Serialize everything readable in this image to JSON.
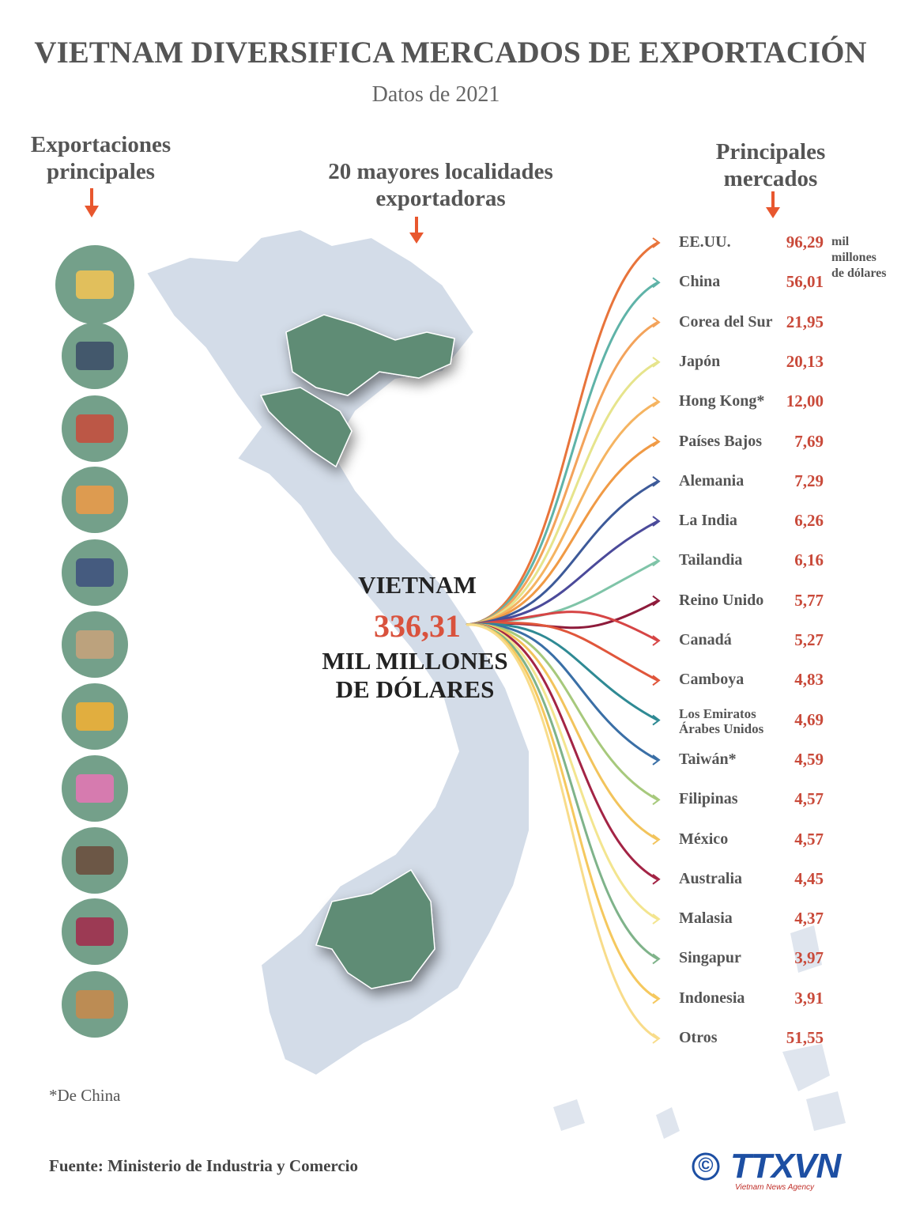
{
  "header": {
    "title": "VIETNAM DIVERSIFICA MERCADOS DE EXPORTACIÓN",
    "subtitle": "Datos de 2021"
  },
  "exports": {
    "heading": "Exportaciones principales"
  },
  "localities": {
    "heading": "20 mayores localidades exportadoras"
  },
  "center": {
    "country": "VIETNAM",
    "total": "336,31",
    "unit": "MIL MILLONES DE DÓLARES"
  },
  "markets": {
    "heading": "Principales mercados",
    "unit": "mil millones de dólares",
    "items": [
      {
        "name": "EE.UU.",
        "value": "96,29",
        "color": "#e8743b"
      },
      {
        "name": "China",
        "value": "56,01",
        "color": "#5fb3a8"
      },
      {
        "name": "Corea del Sur",
        "value": "21,95",
        "color": "#f3a35b"
      },
      {
        "name": "Japón",
        "value": "20,13",
        "color": "#e6e48c"
      },
      {
        "name": "Hong Kong*",
        "value": "12,00",
        "color": "#f5b461"
      },
      {
        "name": "Países Bajos",
        "value": "7,69",
        "color": "#f09a45"
      },
      {
        "name": "Alemania",
        "value": "7,29",
        "color": "#3d5a99"
      },
      {
        "name": "La India",
        "value": "6,26",
        "color": "#4b4a9a"
      },
      {
        "name": "Tailandia",
        "value": "6,16",
        "color": "#7fc4a8"
      },
      {
        "name": "Reino Unido",
        "value": "5,77",
        "color": "#8e1b3b"
      },
      {
        "name": "Canadá",
        "value": "5,27",
        "color": "#d64545"
      },
      {
        "name": "Camboya",
        "value": "4,83",
        "color": "#e0563b"
      },
      {
        "name": "Los Emiratos Árabes Unidos",
        "value": "4,69",
        "color": "#2f8a94"
      },
      {
        "name": "Taiwán*",
        "value": "4,59",
        "color": "#3a6fa6"
      },
      {
        "name": "Filipinas",
        "value": "4,57",
        "color": "#a7c97c"
      },
      {
        "name": "México",
        "value": "4,57",
        "color": "#f2c45c"
      },
      {
        "name": "Australia",
        "value": "4,45",
        "color": "#a32445"
      },
      {
        "name": "Malasia",
        "value": "4,37",
        "color": "#f3e58f"
      },
      {
        "name": "Singapur",
        "value": "3,97",
        "color": "#7fb38a"
      },
      {
        "name": "Indonesia",
        "value": "3,91",
        "color": "#f5c85e"
      },
      {
        "name": "Otros",
        "value": "51,55",
        "color": "#f8dc8a"
      }
    ]
  },
  "footnote": "*De China",
  "source": "Fuente: Ministerio de Industria y Comercio",
  "logo": {
    "symbol": "©",
    "name": "TTXVN",
    "tagline": "Vietnam News Agency"
  }
}
